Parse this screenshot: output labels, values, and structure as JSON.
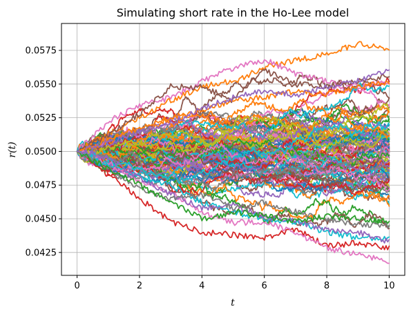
{
  "chart_data": {
    "type": "line",
    "title": "Simulating short rate in the Ho-Lee model",
    "xlabel": "t",
    "ylabel": "r(t)",
    "xlim": [
      -0.5,
      10.5
    ],
    "ylim": [
      0.0408,
      0.0595
    ],
    "grid": true,
    "legend": "none",
    "x_ticks": [
      0,
      2,
      4,
      6,
      8,
      10
    ],
    "x_tick_labels": [
      "0",
      "2",
      "4",
      "6",
      "8",
      "10"
    ],
    "y_ticks": [
      0.0425,
      0.045,
      0.0475,
      0.05,
      0.0525,
      0.055,
      0.0575
    ],
    "y_tick_labels": [
      "0.0425",
      "0.0450",
      "0.0475",
      "0.0500",
      "0.0525",
      "0.0550",
      "0.0575"
    ],
    "initial_rate": 0.05,
    "x_range": [
      0,
      10
    ],
    "num_paths": 100,
    "colors": [
      "#1f77b4",
      "#ff7f0e",
      "#2ca02c",
      "#d62728",
      "#9467bd",
      "#8c564b",
      "#e377c2",
      "#7f7f7f",
      "#bcbd22",
      "#17becf"
    ],
    "series": [
      {
        "x": [
          0,
          1,
          2,
          3,
          4,
          5,
          6,
          7,
          8,
          9,
          10
        ],
        "values": [
          0.05,
          0.0513,
          0.0525,
          0.0538,
          0.0548,
          0.0552,
          0.0562,
          0.0568,
          0.0572,
          0.058,
          0.0576
        ],
        "color": "#ff7f0e"
      },
      {
        "x": [
          0,
          1,
          2,
          3,
          4,
          5,
          6,
          7,
          8,
          9,
          10
        ],
        "values": [
          0.05,
          0.0522,
          0.0534,
          0.054,
          0.0552,
          0.0562,
          0.0568,
          0.0558,
          0.0552,
          0.0548,
          0.0552
        ],
        "color": "#e377c2"
      },
      {
        "x": [
          0,
          1,
          2,
          3,
          4,
          5,
          6,
          7,
          8,
          9,
          10
        ],
        "values": [
          0.05,
          0.0512,
          0.0528,
          0.0548,
          0.0548,
          0.0538,
          0.056,
          0.055,
          0.0548,
          0.0552,
          0.0556
        ],
        "color": "#8c564b"
      },
      {
        "x": [
          0,
          1,
          2,
          3,
          4,
          5,
          6,
          7,
          8,
          9,
          10
        ],
        "values": [
          0.05,
          0.0484,
          0.0465,
          0.0448,
          0.044,
          0.0438,
          0.0436,
          0.0442,
          0.043,
          0.0432,
          0.0428
        ],
        "color": "#d62728"
      },
      {
        "x": [
          0,
          1,
          2,
          3,
          4,
          5,
          6,
          7,
          8,
          9,
          10
        ],
        "values": [
          0.05,
          0.0492,
          0.0478,
          0.047,
          0.0455,
          0.0447,
          0.0448,
          0.044,
          0.0428,
          0.0424,
          0.0418
        ],
        "color": "#e377c2"
      },
      {
        "x": [
          0,
          1,
          2,
          3,
          4,
          5,
          6,
          7,
          8,
          9,
          10
        ],
        "values": [
          0.05,
          0.049,
          0.0482,
          0.0475,
          0.0462,
          0.0455,
          0.045,
          0.0448,
          0.044,
          0.0436,
          0.0436
        ],
        "color": "#17becf"
      },
      {
        "x": [
          0,
          1,
          2,
          3,
          4,
          5,
          6,
          7,
          8,
          9,
          10
        ],
        "values": [
          0.05,
          0.0495,
          0.048,
          0.0468,
          0.0458,
          0.046,
          0.0452,
          0.0448,
          0.0442,
          0.044,
          0.0433
        ],
        "color": "#9467bd"
      },
      {
        "x": [
          0,
          1,
          2,
          3,
          4,
          5,
          6,
          7,
          8,
          9,
          10
        ],
        "values": [
          0.05,
          0.0508,
          0.0518,
          0.0525,
          0.053,
          0.0538,
          0.054,
          0.0545,
          0.0542,
          0.0548,
          0.0552
        ],
        "color": "#ff7f0e"
      },
      {
        "x": [
          0,
          1,
          2,
          3,
          4,
          5,
          6,
          7,
          8,
          9,
          10
        ],
        "values": [
          0.05,
          0.0488,
          0.0472,
          0.0465,
          0.0468,
          0.0458,
          0.0462,
          0.0455,
          0.045,
          0.0446,
          0.0445
        ],
        "color": "#7f7f7f"
      },
      {
        "x": [
          0,
          1,
          2,
          3,
          4,
          5,
          6,
          7,
          8,
          9,
          10
        ],
        "values": [
          0.05,
          0.0487,
          0.0475,
          0.0462,
          0.045,
          0.0455,
          0.0452,
          0.0448,
          0.0452,
          0.045,
          0.0448
        ],
        "color": "#2ca02c"
      },
      {
        "x": [
          0,
          1,
          2,
          3,
          4,
          5,
          6,
          7,
          8,
          9,
          10
        ],
        "values": [
          0.05,
          0.0506,
          0.0515,
          0.052,
          0.0532,
          0.054,
          0.0545,
          0.0542,
          0.0548,
          0.0552,
          0.056
        ],
        "color": "#9467bd"
      }
    ]
  }
}
